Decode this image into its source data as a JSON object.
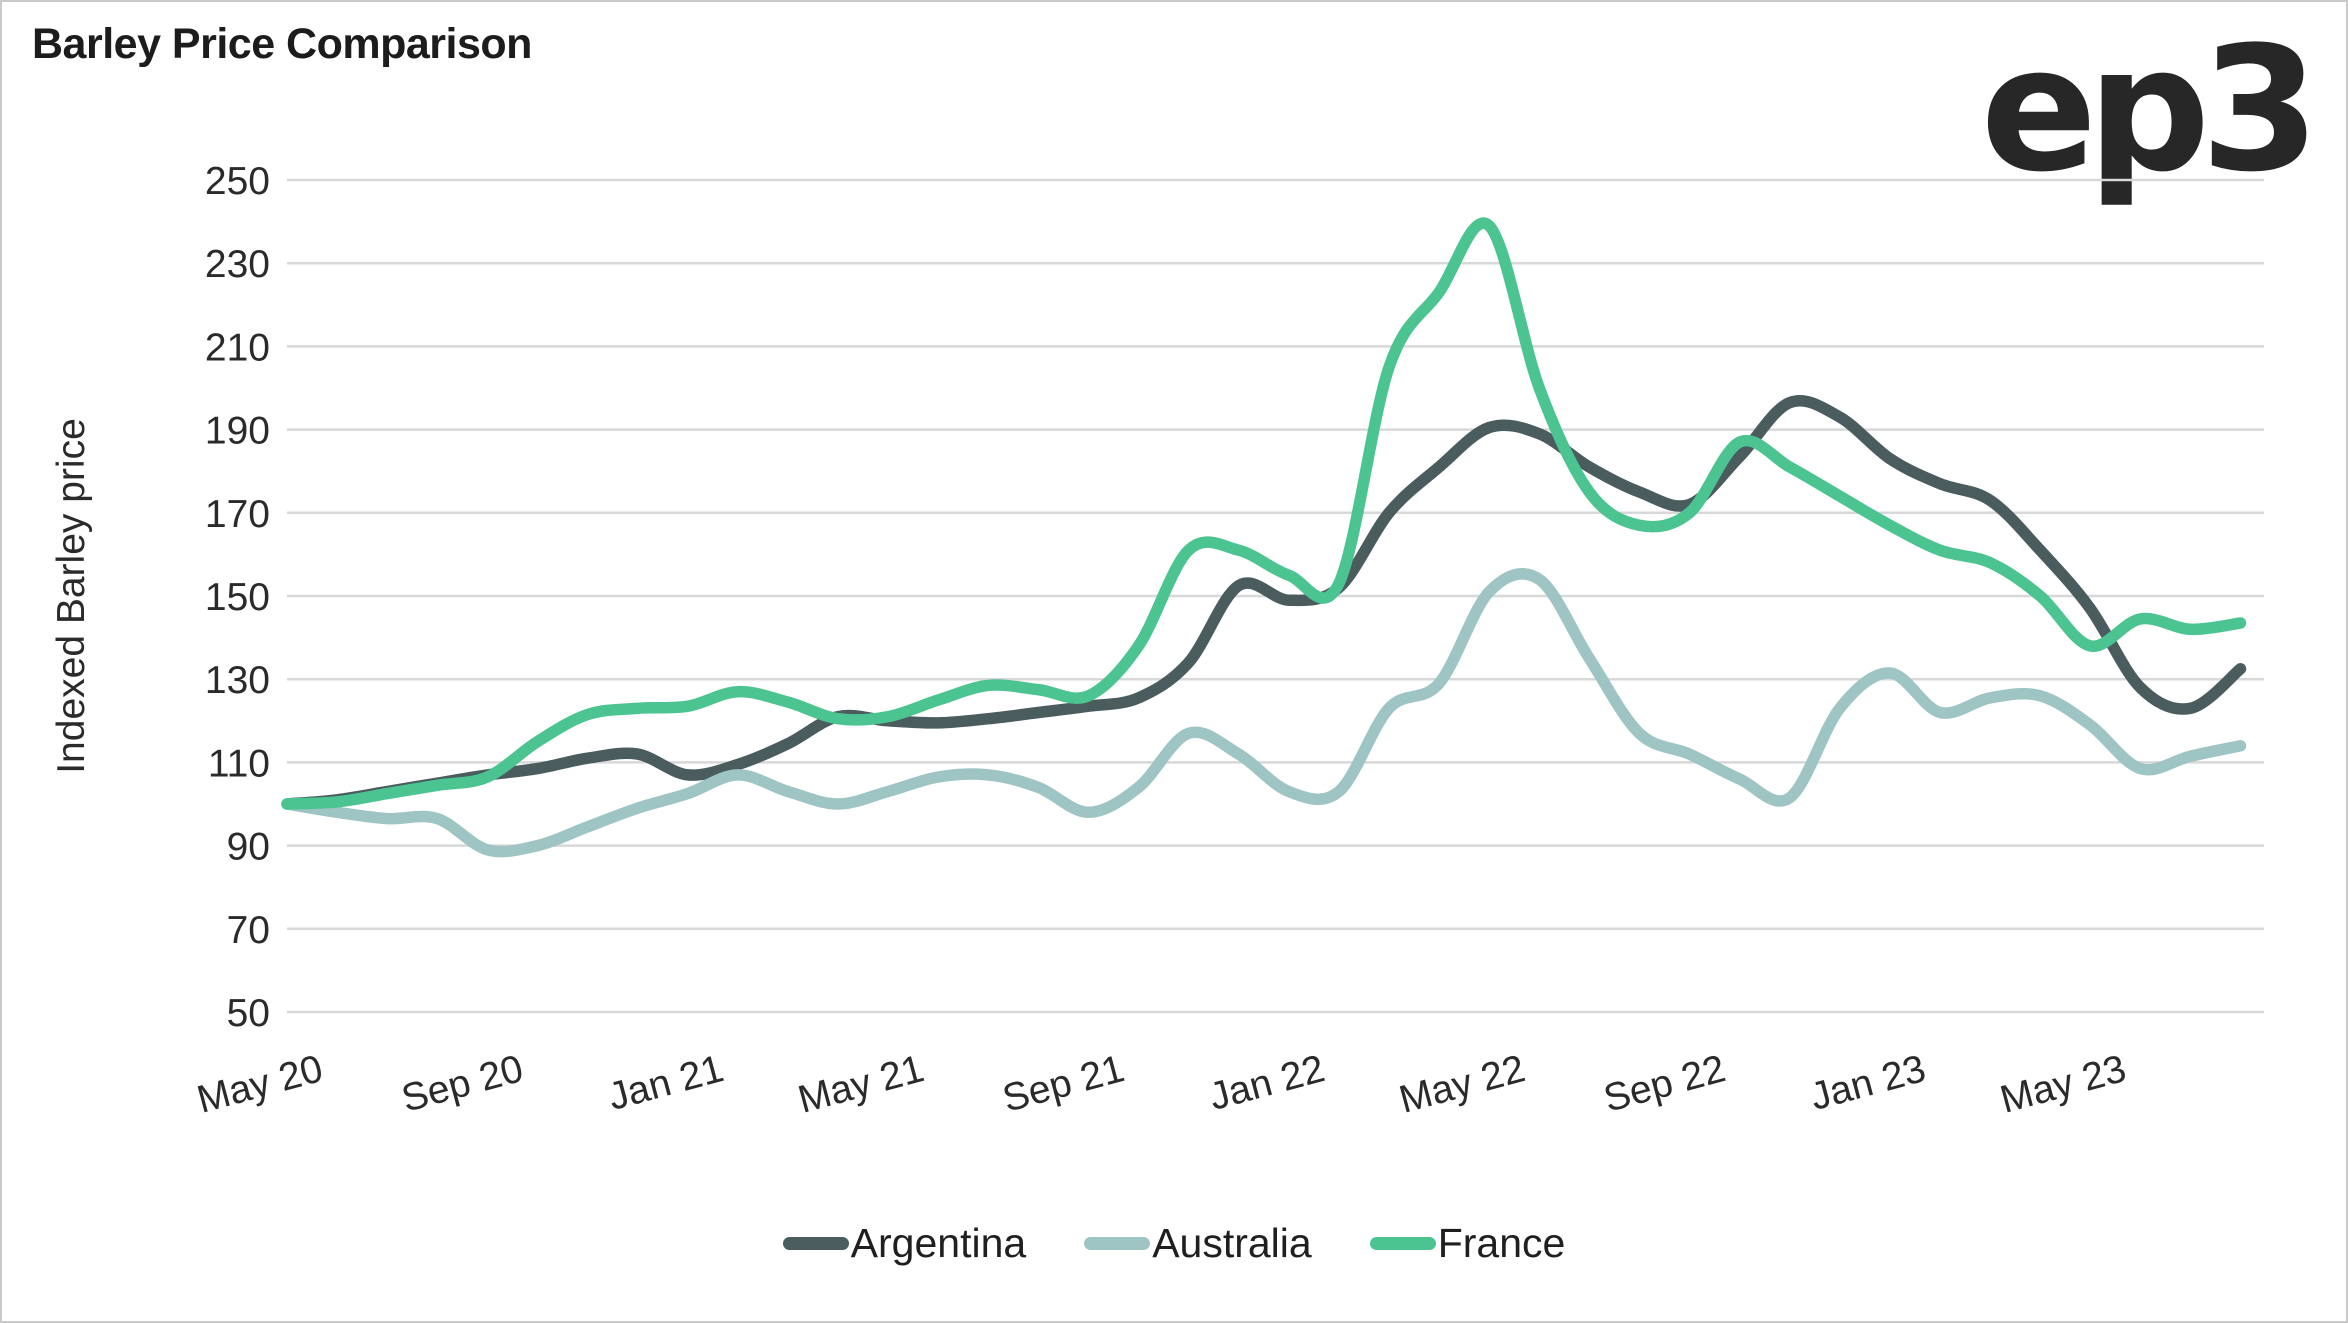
{
  "page": {
    "title": "Barley Price Comparison",
    "logo": "ep3"
  },
  "chart_data": {
    "type": "line",
    "title": "Barley Price Comparison",
    "xlabel": "",
    "ylabel": "Indexed Barley price",
    "ylim": [
      50,
      250
    ],
    "yticks": [
      250,
      230,
      210,
      190,
      170,
      150,
      130,
      110,
      90,
      70,
      50
    ],
    "grid": "horizontal-only",
    "legend_position": "bottom-center",
    "x_tick_labels": [
      "May 20",
      "Sep 20",
      "Jan 21",
      "May 21",
      "Sep 21",
      "Jan 22",
      "May 22",
      "Sep 22",
      "Jan 23",
      "May 23"
    ],
    "tick_interval": 4,
    "x": [
      "May 20",
      "Jun 20",
      "Jul 20",
      "Aug 20",
      "Sep 20",
      "Oct 20",
      "Nov 20",
      "Dec 20",
      "Jan 21",
      "Feb 21",
      "Mar 21",
      "Apr 21",
      "May 21",
      "Jun 21",
      "Jul 21",
      "Aug 21",
      "Sep 21",
      "Oct 21",
      "Nov 21",
      "Dec 21",
      "Jan 22",
      "Feb 22",
      "Mar 22",
      "Apr 22",
      "May 22",
      "Jun 22",
      "Jul 22",
      "Aug 22",
      "Sep 22",
      "Oct 22",
      "Nov 22",
      "Dec 22",
      "Jan 23",
      "Feb 23",
      "Mar 23",
      "Apr 23",
      "May 23",
      "Jun 23",
      "Jul 23",
      "Aug 23"
    ],
    "series": [
      {
        "name": "Argentina",
        "color": "#4a5c5e",
        "values": [
          100,
          101,
          103,
          105,
          107,
          108.5,
          111,
          112,
          107,
          109.5,
          114.5,
          121,
          120,
          119.5,
          120.5,
          122,
          123.5,
          125.5,
          134,
          152.5,
          149,
          152,
          170,
          181,
          190.5,
          189,
          181,
          175,
          172,
          183.5,
          196.5,
          193,
          183,
          177,
          173,
          161,
          147,
          128,
          123,
          132.5
        ]
      },
      {
        "name": "Australia",
        "color": "#9ec5c3",
        "values": [
          100,
          98,
          96.5,
          96.5,
          89,
          90,
          94.5,
          99,
          102.5,
          107,
          103,
          100,
          103,
          106.5,
          107,
          104,
          98,
          104,
          117,
          112,
          103,
          103,
          123,
          129,
          151,
          154,
          135,
          117,
          112,
          106,
          101.5,
          123,
          131.5,
          122,
          125.5,
          126,
          119,
          108.5,
          111.5,
          114
        ]
      },
      {
        "name": "France",
        "color": "#4cc492",
        "values": [
          100,
          100.5,
          102.5,
          104.5,
          106.5,
          115,
          121.5,
          123,
          123.5,
          127,
          124.5,
          120.5,
          121,
          125,
          128.5,
          127.5,
          126,
          138,
          161,
          161,
          155,
          153,
          205,
          223,
          239,
          200,
          175,
          167,
          170,
          187,
          181,
          174,
          167,
          161,
          158,
          150,
          138,
          144.5,
          142,
          143.5
        ]
      }
    ]
  },
  "colors": {
    "grid": "#d8d8d8",
    "axis_text": "#2a2a2a",
    "title_text": "#1c1c1c",
    "logo_text": "#272727",
    "border": "#c9c9c9",
    "background": "#ffffff"
  }
}
